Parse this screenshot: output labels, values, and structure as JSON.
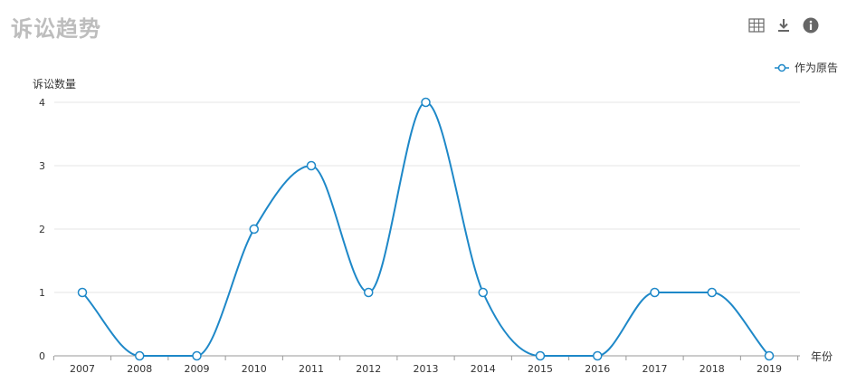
{
  "header": {
    "title": "诉讼趋势",
    "tools": [
      {
        "icon": "table-icon"
      },
      {
        "icon": "download-icon"
      },
      {
        "icon": "info-icon"
      }
    ]
  },
  "colors": {
    "series": "#1e88c8",
    "grid": "#e6e6e6",
    "axis": "#999999",
    "title": "#bdbdbd",
    "icon": "#666666"
  },
  "chart_data": {
    "type": "line",
    "title": "",
    "xlabel": "年份",
    "ylabel": "诉讼数量",
    "categories": [
      "2007",
      "2008",
      "2009",
      "2010",
      "2011",
      "2012",
      "2013",
      "2014",
      "2015",
      "2016",
      "2017",
      "2018",
      "2019"
    ],
    "series": [
      {
        "name": "作为原告",
        "values": [
          1,
          0,
          0,
          2,
          3,
          1,
          4,
          1,
          0,
          0,
          1,
          1,
          0
        ]
      }
    ],
    "ylim": [
      0,
      4
    ],
    "yticks": [
      "0",
      "1",
      "2",
      "3",
      "4"
    ],
    "grid": true,
    "smooth": true,
    "legend_position": "top-right"
  }
}
